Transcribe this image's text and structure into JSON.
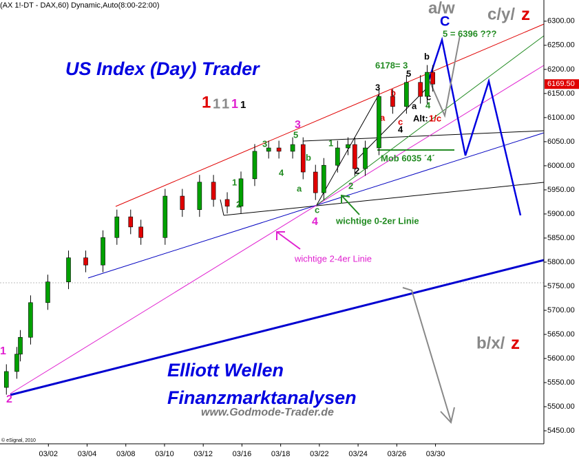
{
  "chart_data": {
    "type": "candlestick",
    "title": "(AX 1!-DT - DAX,60) Dynamic,Auto(8:00-22:00)",
    "footer": "© eSignal, 2010",
    "x": [
      -2.17,
      -1.63,
      -1.45,
      -0.92,
      -0.03,
      1.04,
      1.93,
      2.82,
      3.54,
      4.25,
      4.78,
      6.03,
      6.92,
      7.81,
      8.53,
      9.24,
      9.95,
      10.66,
      11.38,
      11.91,
      12.62,
      13.16,
      13.8,
      14.23,
      14.94,
      15.48,
      15.83,
      16.37,
      17.08,
      17.79,
      18.5,
      19.22,
      19.57,
      19.86
    ],
    "open": [
      5540,
      5573,
      5609,
      5644,
      5716,
      5759,
      5809,
      5794,
      5851,
      5894,
      5873,
      5851,
      5937,
      5909,
      5966,
      5930,
      5916,
      5973,
      6030,
      6037,
      6030,
      6044,
      5987,
      5944,
      6001,
      6037,
      6044,
      5994,
      6037,
      6144,
      6123,
      6173,
      6144,
      6194
    ],
    "high": [
      5588,
      5624,
      5659,
      5731,
      5774,
      5824,
      5824,
      5866,
      5909,
      5909,
      5888,
      5952,
      5952,
      5981,
      5981,
      5945,
      5988,
      6045,
      6052,
      6052,
      6059,
      6059,
      6002,
      6016,
      6052,
      6059,
      6059,
      6052,
      6159,
      6159,
      6188,
      6188,
      6209,
      6209
    ],
    "low": [
      5525,
      5558,
      5594,
      5629,
      5701,
      5744,
      5779,
      5779,
      5836,
      5858,
      5836,
      5836,
      5894,
      5894,
      5915,
      5901,
      5901,
      5958,
      6015,
      6015,
      6015,
      5972,
      5929,
      5929,
      5986,
      6022,
      5979,
      5979,
      6022,
      6108,
      6108,
      6129,
      6129,
      6154
    ],
    "close": [
      5573,
      5609,
      5644,
      5716,
      5759,
      5809,
      5794,
      5851,
      5894,
      5873,
      5851,
      5937,
      5909,
      5966,
      5930,
      5916,
      5973,
      6030,
      6037,
      6030,
      6044,
      5987,
      5944,
      6001,
      6037,
      6044,
      5994,
      6037,
      6144,
      6123,
      6173,
      6144,
      6194,
      6169.5
    ],
    "last_price_label": "6169.50",
    "up_color": "#00a000",
    "down_color": "#e00000",
    "xlim": [
      -2.5,
      25.6
    ],
    "xticks": [
      {
        "value": 0,
        "label": "03/02"
      },
      {
        "value": 2,
        "label": "03/04"
      },
      {
        "value": 4,
        "label": "03/08"
      },
      {
        "value": 6,
        "label": "03/10"
      },
      {
        "value": 8,
        "label": "03/12"
      },
      {
        "value": 10,
        "label": "03/16"
      },
      {
        "value": 12,
        "label": "03/18"
      },
      {
        "value": 14,
        "label": "03/22"
      },
      {
        "value": 16,
        "label": "03/24"
      },
      {
        "value": 18,
        "label": "03/26"
      },
      {
        "value": 20,
        "label": "03/30"
      }
    ],
    "ylim": [
      5423,
      6344
    ],
    "yticks": [
      {
        "value": 5450,
        "label": "5450.00"
      },
      {
        "value": 5500,
        "label": "5500.00"
      },
      {
        "value": 5550,
        "label": "5550.00"
      },
      {
        "value": 5600,
        "label": "5600.00"
      },
      {
        "value": 5650,
        "label": "5650.00"
      },
      {
        "value": 5700,
        "label": "5700.00"
      },
      {
        "value": 5750,
        "label": "5750.00"
      },
      {
        "value": 5800,
        "label": "5800.00"
      },
      {
        "value": 5850,
        "label": "5850.00"
      },
      {
        "value": 5900,
        "label": "5900.00"
      },
      {
        "value": 5950,
        "label": "5950.00"
      },
      {
        "value": 6000,
        "label": "6000.00"
      },
      {
        "value": 6050,
        "label": "6050.00"
      },
      {
        "value": 6100,
        "label": "6100.00"
      },
      {
        "value": 6150,
        "label": "6150.00"
      },
      {
        "value": 6200,
        "label": "6200.00"
      },
      {
        "value": 6250,
        "label": "6250.00"
      },
      {
        "value": 6300,
        "label": "6300.00"
      }
    ],
    "grid": false,
    "annotations": [
      "US Index (Day) Trader",
      "Elliott Wellen",
      "Finanzmarktanalysen",
      "www.Godmode-Trader.de",
      "a/w",
      "c/y/",
      "z",
      "C",
      "5 = 6396 ???",
      "6178= 3",
      "b/x/",
      "z",
      "Mob 6035 ´4´",
      "wichtige 0-2er Linie",
      "wichtige 2-4er Linie",
      "Alt:",
      "1/c",
      "1",
      "2",
      "3",
      "4",
      "5",
      "3",
      "4",
      "1",
      "2",
      "a",
      "b",
      "c",
      "1",
      "2",
      "2",
      "3",
      "b",
      "a",
      "c",
      "4",
      "5",
      "a",
      "b",
      "c",
      "4",
      "1",
      "1",
      "1",
      "1",
      "1"
    ]
  }
}
